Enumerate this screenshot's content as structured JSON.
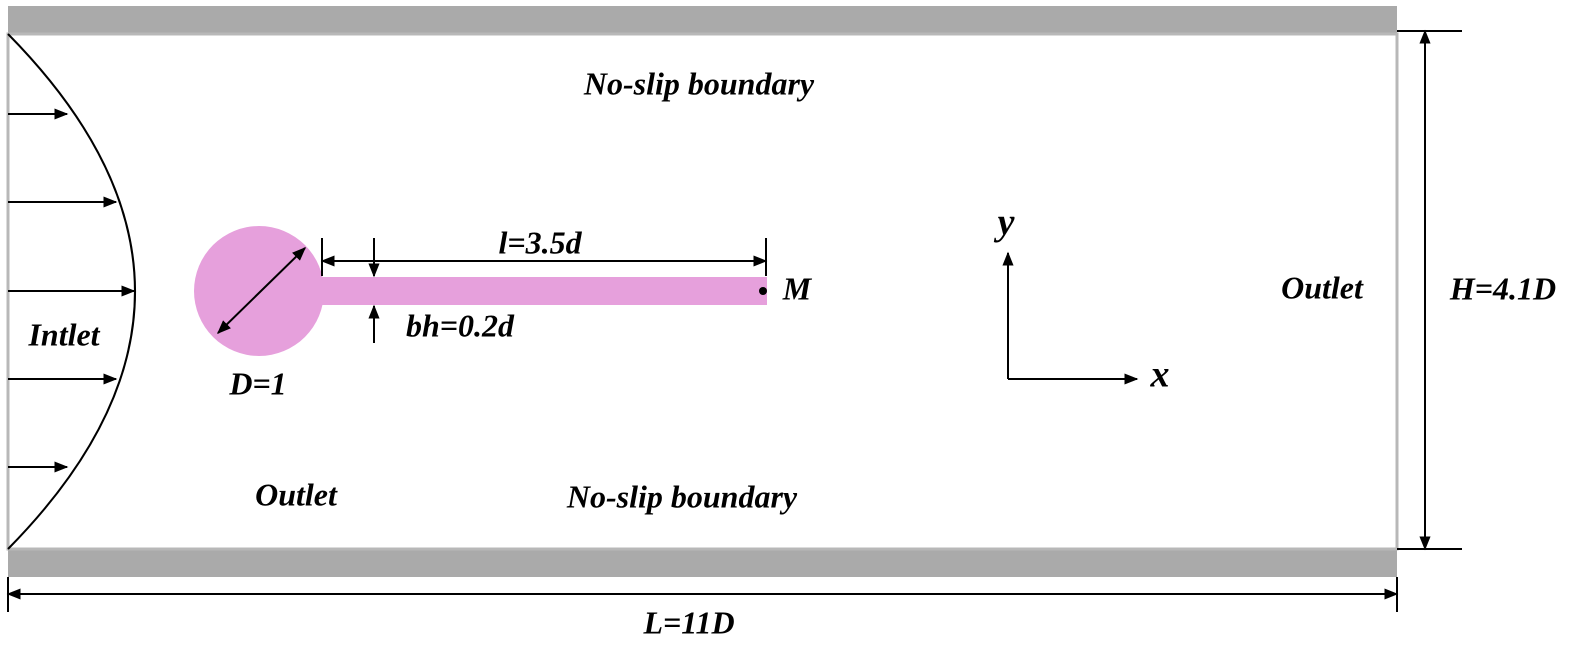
{
  "labels": {
    "top_wall": "No-slip boundary",
    "bottom_wall": "No-slip boundary",
    "inlet": "Intlet",
    "outlet_right": "Outlet",
    "outlet_bottom": "Outlet",
    "diameter": "D=1",
    "beam_length": "l=3.5d",
    "beam_height": "bh=0.2d",
    "monitor_point": "M",
    "axis_y": "y",
    "axis_x": "x",
    "channel_height": "H=4.1D",
    "channel_length": "L=11D"
  }
}
